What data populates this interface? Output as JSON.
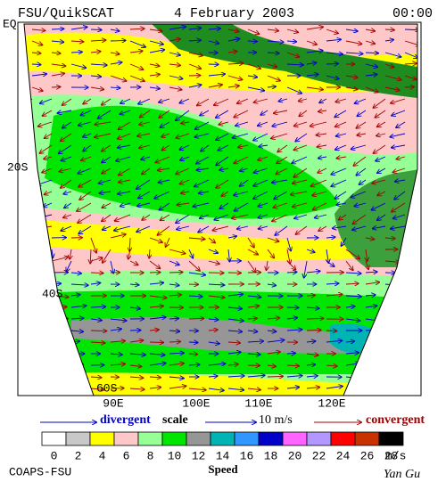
{
  "header": {
    "source": "FSU/QuikSCAT",
    "date": "4 February 2003",
    "time": "00:00"
  },
  "latitude_labels": [
    "EQ",
    "20S",
    "40S",
    "60S"
  ],
  "longitude_labels": [
    "90E",
    "100E",
    "110E",
    "120E"
  ],
  "legend": {
    "divergent": "divergent",
    "scale": "scale",
    "scale_value": "10 m/s",
    "convergent": "convergent"
  },
  "colorbar": {
    "colors": [
      "#ffffff",
      "#c8c8c8",
      "#ffff00",
      "#ffc8c8",
      "#96ff96",
      "#00e600",
      "#969696",
      "#00b4b4",
      "#3296ff",
      "#0000c8",
      "#ff64ff",
      "#b496ff",
      "#ff0000",
      "#c83200",
      "#000000"
    ],
    "ticks": [
      0,
      2,
      4,
      6,
      8,
      10,
      12,
      14,
      16,
      18,
      20,
      22,
      24,
      26,
      28
    ],
    "unit": "m/s",
    "label": "Speed"
  },
  "footer": {
    "left": "COAPS-FSU",
    "right": "Yan Gu"
  }
}
